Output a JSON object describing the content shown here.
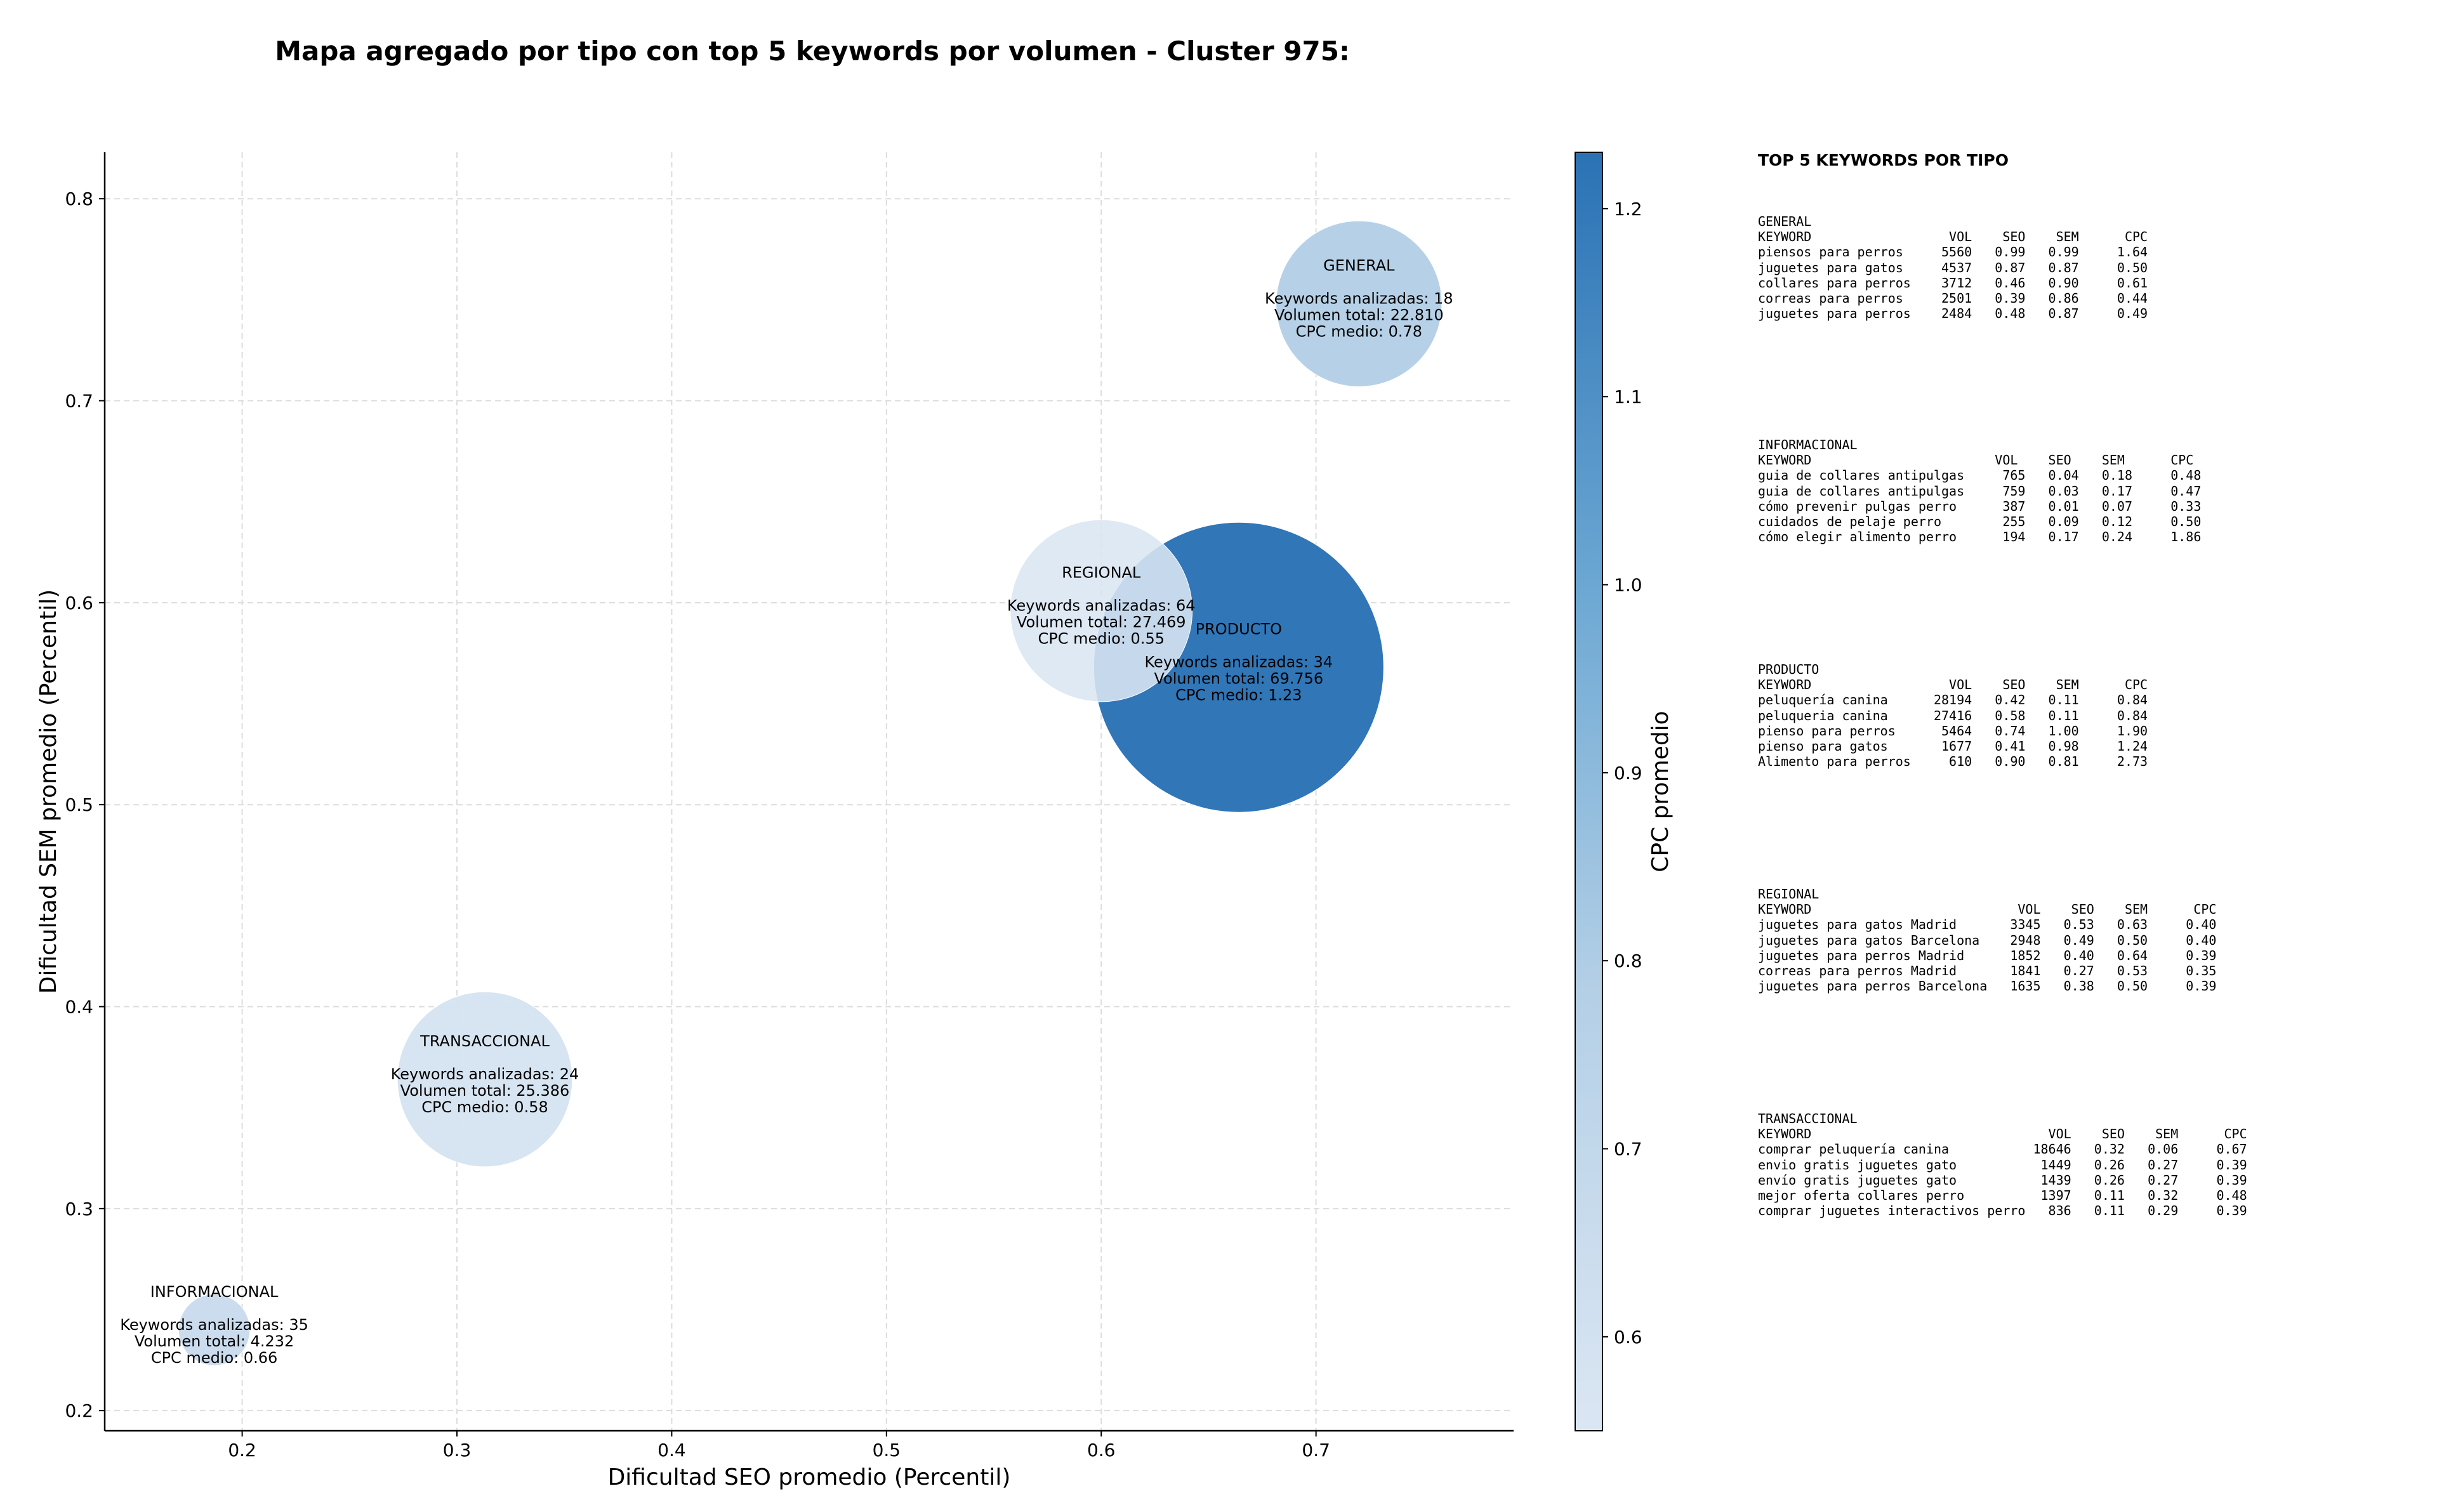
{
  "chart_data": {
    "type": "scatter",
    "title": "Mapa agregado por tipo con top 5 keywords por volumen - Cluster 975:",
    "xlabel": "Dificultad SEO promedio (Percentil)",
    "ylabel": "Dificultad SEM promedio (Percentil)",
    "xlim": [
      0.136,
      0.792
    ],
    "ylim": [
      0.19,
      0.823
    ],
    "xticks": [
      "0.2",
      "0.3",
      "0.4",
      "0.5",
      "0.6",
      "0.7"
    ],
    "yticks": [
      "0.2",
      "0.3",
      "0.4",
      "0.5",
      "0.6",
      "0.7",
      "0.8"
    ],
    "grid": true,
    "colorbar": {
      "label": "CPC promedio",
      "min": 0.55,
      "max": 1.23,
      "ticks": [
        "0.6",
        "0.7",
        "0.8",
        "0.9",
        "1.0",
        "1.1",
        "1.2"
      ]
    },
    "points": [
      {
        "name": "GENERAL",
        "x": 0.72,
        "y": 0.748,
        "keywords": 18,
        "volume": 22810,
        "cpc": 0.78,
        "lines": [
          "Keywords analizadas: 18",
          "Volumen total: 22.810",
          "CPC medio: 0.78"
        ]
      },
      {
        "name": "PRODUCTO",
        "x": 0.664,
        "y": 0.568,
        "keywords": 34,
        "volume": 69756,
        "cpc": 1.23,
        "lines": [
          "Keywords analizadas: 34",
          "Volumen total: 69.756",
          "CPC medio: 1.23"
        ]
      },
      {
        "name": "REGIONAL",
        "x": 0.6,
        "y": 0.596,
        "keywords": 64,
        "volume": 27469,
        "cpc": 0.55,
        "lines": [
          "Keywords analizadas: 64",
          "Volumen total: 27.469",
          "CPC medio: 0.55"
        ]
      },
      {
        "name": "TRANSACCIONAL",
        "x": 0.313,
        "y": 0.364,
        "keywords": 24,
        "volume": 25386,
        "cpc": 0.58,
        "lines": [
          "Keywords analizadas: 24",
          "Volumen total: 25.386",
          "CPC medio: 0.58"
        ]
      },
      {
        "name": "INFORMACIONAL",
        "x": 0.187,
        "y": 0.24,
        "keywords": 35,
        "volume": 4232,
        "cpc": 0.66,
        "lines": [
          "Keywords analizadas: 35",
          "Volumen total: 4.232",
          "CPC medio: 0.66"
        ]
      }
    ]
  },
  "panel": {
    "title": "TOP 5 KEYWORDS POR TIPO",
    "groups": [
      {
        "name": "GENERAL",
        "text": "KEYWORD                  VOL    SEO    SEM      CPC\npiensos para perros     5560   0.99   0.99     1.64\njuguetes para gatos     4537   0.87   0.87     0.50\ncollares para perros    3712   0.46   0.90     0.61\ncorreas para perros     2501   0.39   0.86     0.44\njuguetes para perros    2484   0.48   0.87     0.49"
      },
      {
        "name": "INFORMACIONAL",
        "text": "KEYWORD                        VOL    SEO    SEM      CPC\nguia de collares antipulgas     765   0.04   0.18     0.48\nguia de collares antipulgas     759   0.03   0.17     0.47\ncómo prevenir pulgas perro      387   0.01   0.07     0.33\ncuidados de pelaje perro        255   0.09   0.12     0.50\ncómo elegir alimento perro      194   0.17   0.24     1.86"
      },
      {
        "name": "PRODUCTO",
        "text": "KEYWORD                  VOL    SEO    SEM      CPC\npeluquería canina      28194   0.42   0.11     0.84\npeluqueria canina      27416   0.58   0.11     0.84\npienso para perros      5464   0.74   1.00     1.90\npienso para gatos       1677   0.41   0.98     1.24\nAlimento para perros     610   0.90   0.81     2.73"
      },
      {
        "name": "REGIONAL",
        "text": "KEYWORD                           VOL    SEO    SEM      CPC\njuguetes para gatos Madrid       3345   0.53   0.63     0.40\njuguetes para gatos Barcelona    2948   0.49   0.50     0.40\njuguetes para perros Madrid      1852   0.40   0.64     0.39\ncorreas para perros Madrid       1841   0.27   0.53     0.35\njuguetes para perros Barcelona   1635   0.38   0.50     0.39"
      },
      {
        "name": "TRANSACCIONAL",
        "text": "KEYWORD                               VOL    SEO    SEM      CPC\ncomprar peluquería canina           18646   0.32   0.06     0.67\nenvio gratis juguetes gato           1449   0.26   0.27     0.39\nenvío gratis juguetes gato           1439   0.26   0.27     0.39\nmejor oferta collares perro          1397   0.11   0.32     0.48\ncomprar juguetes interactivos perro   836   0.11   0.29     0.39"
      }
    ]
  }
}
